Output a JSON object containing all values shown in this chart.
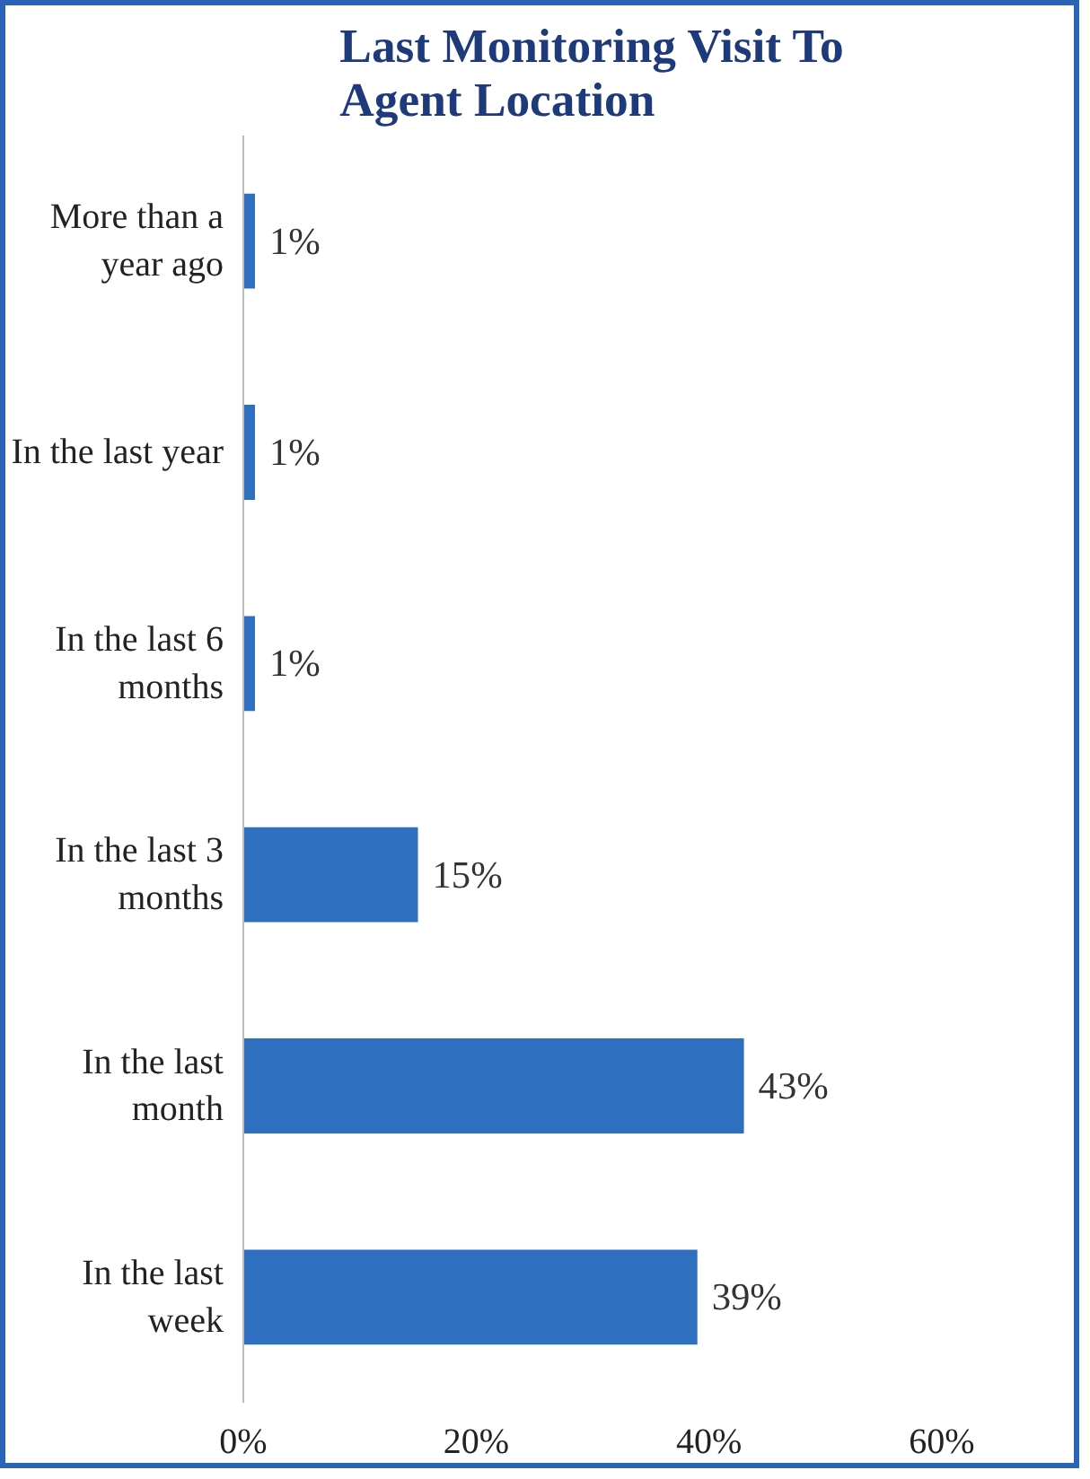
{
  "chart_data": {
    "type": "bar",
    "orientation": "horizontal",
    "title": "Last Monitoring Visit To\nAgent Location",
    "categories": [
      "More than a\nyear ago",
      "In the last year",
      "In the last 6\nmonths",
      "In the last 3\nmonths",
      "In the last\nmonth",
      "In the last\nweek"
    ],
    "values": [
      1,
      1,
      1,
      15,
      43,
      39
    ],
    "color": "#2e6fc0",
    "value_labels": [
      "1%",
      "1%",
      "1%",
      "15%",
      "43%",
      "39%"
    ],
    "xlim": [
      0,
      60
    ],
    "xticks": [
      {
        "value": 0,
        "label": "0%"
      },
      {
        "value": 20,
        "label": "20%"
      },
      {
        "value": 40,
        "label": "40%"
      },
      {
        "value": 60,
        "label": "60%"
      }
    ],
    "grid": false
  }
}
